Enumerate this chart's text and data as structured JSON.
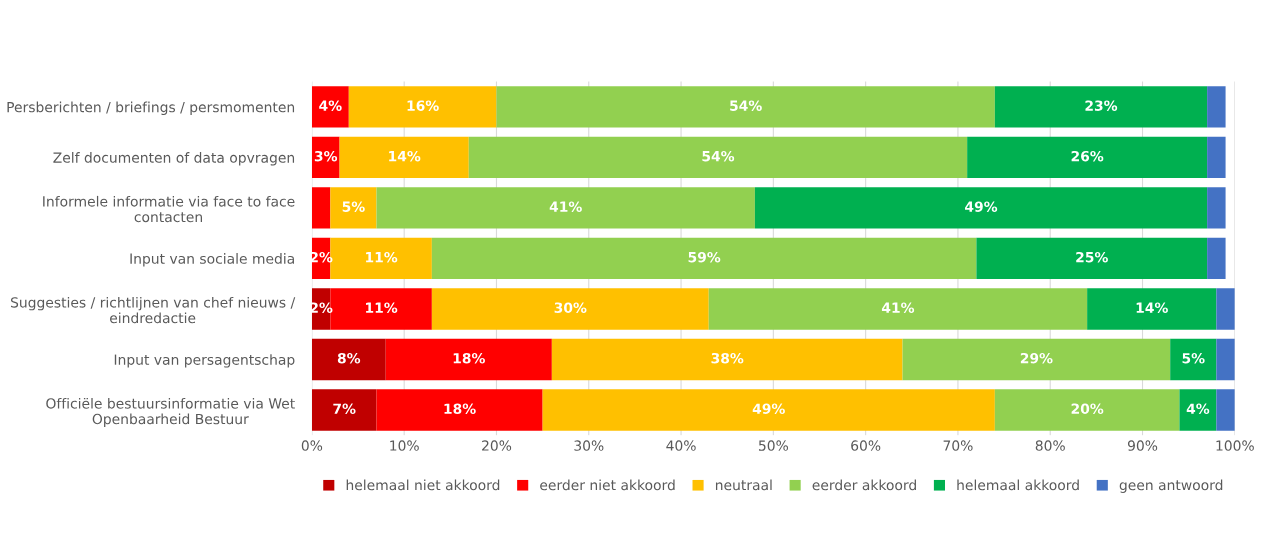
{
  "chart_data": {
    "type": "bar",
    "orientation": "horizontal",
    "stacked": true,
    "categories": [
      "Persberichten / briefings / persmomenten",
      "Zelf documenten of data opvragen",
      "Informele informatie via face to face contacten",
      "Input van sociale media",
      "Suggesties / richtlijnen van chef nieuws / eindredactie",
      "Input van persagentschap",
      "Officiële bestuursinformatie via Wet Openbaarheid Bestuur"
    ],
    "series": [
      {
        "name": "helemaal niet akkoord",
        "color": "#c00000",
        "values": [
          0,
          0,
          0,
          0,
          2,
          8,
          7
        ],
        "value_labels": [
          null,
          null,
          null,
          null,
          "2%",
          "8%",
          "7%"
        ]
      },
      {
        "name": "eerder niet akkoord",
        "color": "#ff0000",
        "values": [
          4,
          3,
          2,
          2,
          11,
          18,
          18
        ],
        "value_labels": [
          "4%",
          "3%",
          null,
          "2%",
          "11%",
          "18%",
          "18%"
        ]
      },
      {
        "name": "neutraal",
        "color": "#ffc000",
        "values": [
          16,
          14,
          5,
          11,
          30,
          38,
          49
        ],
        "value_labels": [
          "16%",
          "14%",
          "5%",
          "11%",
          "30%",
          "38%",
          "49%"
        ]
      },
      {
        "name": "eerder akkoord",
        "color": "#92d050",
        "values": [
          54,
          54,
          41,
          59,
          41,
          29,
          20
        ],
        "value_labels": [
          "54%",
          "54%",
          "41%",
          "59%",
          "41%",
          "29%",
          "20%"
        ]
      },
      {
        "name": "helemaal akkoord",
        "color": "#00b050",
        "values": [
          23,
          26,
          49,
          25,
          14,
          5,
          4
        ],
        "value_labels": [
          "23%",
          "26%",
          "49%",
          "25%",
          "14%",
          "5%",
          "4%"
        ]
      },
      {
        "name": "geen antwoord",
        "color": "#4472c4",
        "values": [
          2,
          2,
          2,
          2,
          2,
          2,
          2
        ],
        "value_labels": [
          null,
          null,
          null,
          null,
          null,
          null,
          null
        ]
      }
    ],
    "xlim": [
      0,
      100
    ],
    "xticks": [
      {
        "value": 0,
        "label": "0%"
      },
      {
        "value": 10,
        "label": "10%"
      },
      {
        "value": 20,
        "label": "20%"
      },
      {
        "value": 30,
        "label": "30%"
      },
      {
        "value": 40,
        "label": "40%"
      },
      {
        "value": 50,
        "label": "50%"
      },
      {
        "value": 60,
        "label": "60%"
      },
      {
        "value": 70,
        "label": "70%"
      },
      {
        "value": 80,
        "label": "80%"
      },
      {
        "value": 90,
        "label": "90%"
      },
      {
        "value": 100,
        "label": "100%"
      }
    ],
    "grid": "x",
    "legend": "bottom"
  }
}
